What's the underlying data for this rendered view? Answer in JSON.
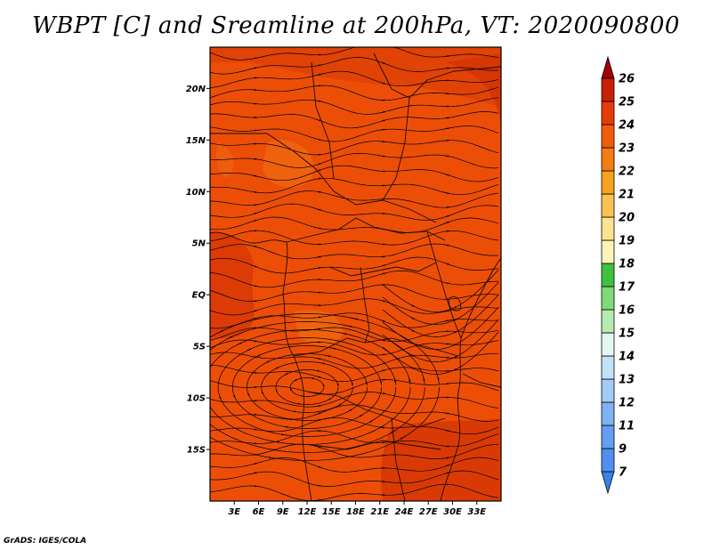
{
  "title": "WBPT [C] and Sreamline at 200hPa, VT: 2020090800",
  "credit": "GrADS: IGES/COLA",
  "map": {
    "lon_range": [
      0,
      36
    ],
    "lat_range": [
      -20,
      24
    ],
    "lat_ticks": [
      {
        "value": 20,
        "label": "20N"
      },
      {
        "value": 15,
        "label": "15N"
      },
      {
        "value": 10,
        "label": "10N"
      },
      {
        "value": 5,
        "label": "5N"
      },
      {
        "value": 0,
        "label": "EQ"
      },
      {
        "value": -5,
        "label": "5S"
      },
      {
        "value": -10,
        "label": "10S"
      },
      {
        "value": -15,
        "label": "15S"
      }
    ],
    "lon_ticks": [
      {
        "value": 3,
        "label": "3E"
      },
      {
        "value": 6,
        "label": "6E"
      },
      {
        "value": 9,
        "label": "9E"
      },
      {
        "value": 12,
        "label": "12E"
      },
      {
        "value": 15,
        "label": "15E"
      },
      {
        "value": 18,
        "label": "18E"
      },
      {
        "value": 21,
        "label": "21E"
      },
      {
        "value": 24,
        "label": "24E"
      },
      {
        "value": 27,
        "label": "27E"
      },
      {
        "value": 30,
        "label": "30E"
      },
      {
        "value": 33,
        "label": "33E"
      }
    ]
  },
  "colorbar": {
    "levels": [
      "7",
      "9",
      "11",
      "12",
      "13",
      "14",
      "15",
      "16",
      "17",
      "18",
      "19",
      "20",
      "21",
      "22",
      "23",
      "24",
      "25",
      "26"
    ],
    "colors": [
      "#3b7fe8",
      "#4f8ff0",
      "#629ff2",
      "#7fb2f5",
      "#a3cbf7",
      "#c4e1f8",
      "#e5f5f4",
      "#b7ebb0",
      "#7fdb78",
      "#3fc13f",
      "#fbf4b4",
      "#fde38e",
      "#fbc253",
      "#f7a21f",
      "#f47d12",
      "#f25b0a",
      "#e63b06",
      "#c81e06",
      "#a00000"
    ]
  }
}
